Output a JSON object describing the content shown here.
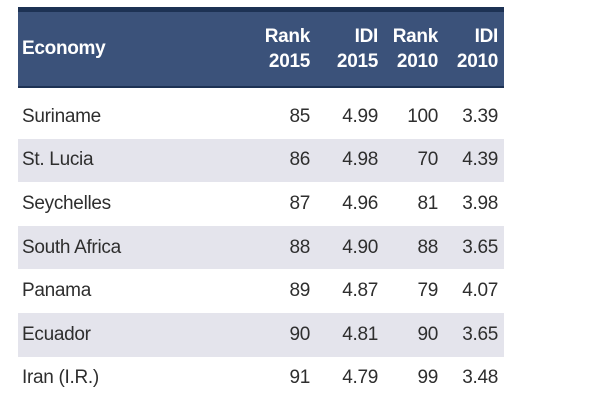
{
  "table": {
    "columns": {
      "economy": {
        "label": "Economy"
      },
      "rank_2015": {
        "line1": "Rank",
        "line2": "2015"
      },
      "idi_2015": {
        "line1": "IDI",
        "line2": "2015"
      },
      "rank_2010": {
        "line1": "Rank",
        "line2": "2010"
      },
      "idi_2010": {
        "line1": "IDI",
        "line2": "2010"
      }
    },
    "rows": [
      {
        "economy": "Suriname",
        "rank_2015": "85",
        "idi_2015": "4.99",
        "rank_2010": "100",
        "idi_2010": "3.39"
      },
      {
        "economy": "St. Lucia",
        "rank_2015": "86",
        "idi_2015": "4.98",
        "rank_2010": "70",
        "idi_2010": "4.39"
      },
      {
        "economy": "Seychelles",
        "rank_2015": "87",
        "idi_2015": "4.96",
        "rank_2010": "81",
        "idi_2010": "3.98"
      },
      {
        "economy": "South Africa",
        "rank_2015": "88",
        "idi_2015": "4.90",
        "rank_2010": "88",
        "idi_2010": "3.65"
      },
      {
        "economy": "Panama",
        "rank_2015": "89",
        "idi_2015": "4.87",
        "rank_2010": "79",
        "idi_2010": "4.07"
      },
      {
        "economy": "Ecuador",
        "rank_2015": "90",
        "idi_2015": "4.81",
        "rank_2010": "90",
        "idi_2010": "3.65"
      },
      {
        "economy": "Iran (I.R.)",
        "rank_2015": "91",
        "idi_2015": "4.79",
        "rank_2010": "99",
        "idi_2010": "3.48"
      }
    ]
  },
  "colors": {
    "header_bg": "#3b527a",
    "header_border": "#1d3254",
    "header_text": "#ffffff",
    "stripe": "#e4e4ec",
    "row_text": "#2e2e2e",
    "page_bg": "#ffffff"
  }
}
